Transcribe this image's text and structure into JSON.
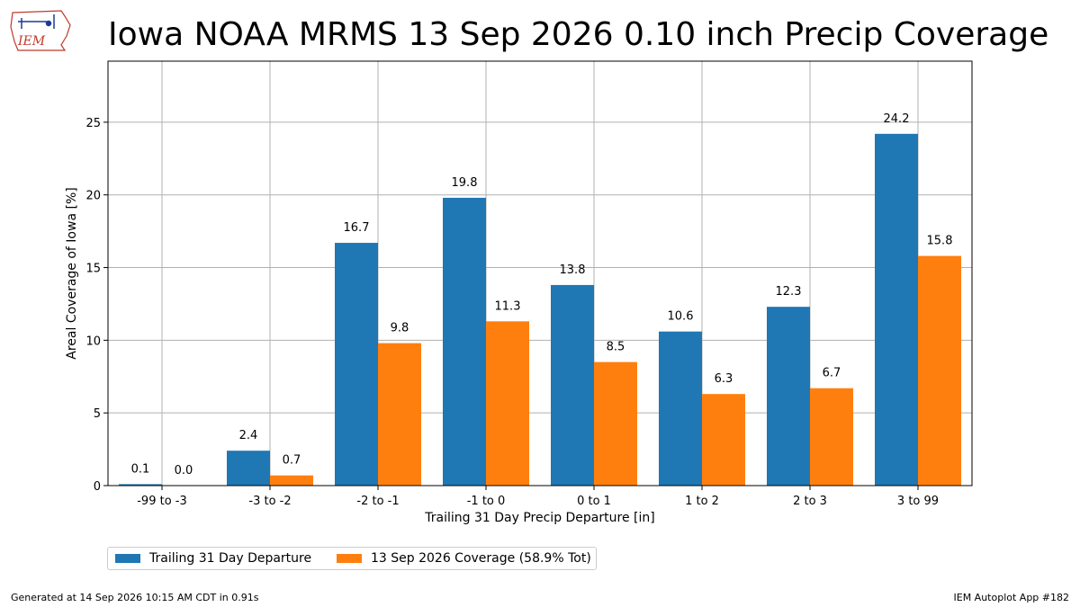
{
  "header": {
    "logo_text": "IEM",
    "title": "Iowa NOAA MRMS 13 Sep 2026 0.10 inch Precip Coverage"
  },
  "chart_data": {
    "type": "bar",
    "title": "Iowa NOAA MRMS 13 Sep 2026 0.10 inch Precip Coverage",
    "xlabel": "Trailing 31 Day Precip Departure [in]",
    "ylabel": "Areal Coverage of Iowa [%]",
    "categories": [
      "-99 to -3",
      "-3 to -2",
      "-2 to -1",
      "-1 to 0",
      "0 to 1",
      "1 to 2",
      "2 to 3",
      "3 to 99"
    ],
    "series": [
      {
        "name": "Trailing 31 Day Departure",
        "color": "#1f77b4",
        "values": [
          0.1,
          2.4,
          16.7,
          19.8,
          13.8,
          10.6,
          12.3,
          24.2
        ]
      },
      {
        "name": "13 Sep 2026 Coverage (58.9% Tot)",
        "color": "#ff7f0e",
        "values": [
          0.0,
          0.7,
          9.8,
          11.3,
          8.5,
          6.3,
          6.7,
          15.8
        ]
      }
    ],
    "ylim": [
      0,
      29.2
    ],
    "yticks": [
      0,
      5,
      10,
      15,
      20,
      25
    ],
    "grid": true,
    "legend_position": "below chart, left"
  },
  "footer": {
    "left": "Generated at 14 Sep 2026 10:15 AM CDT in 0.91s",
    "right": "IEM Autoplot App #182"
  }
}
